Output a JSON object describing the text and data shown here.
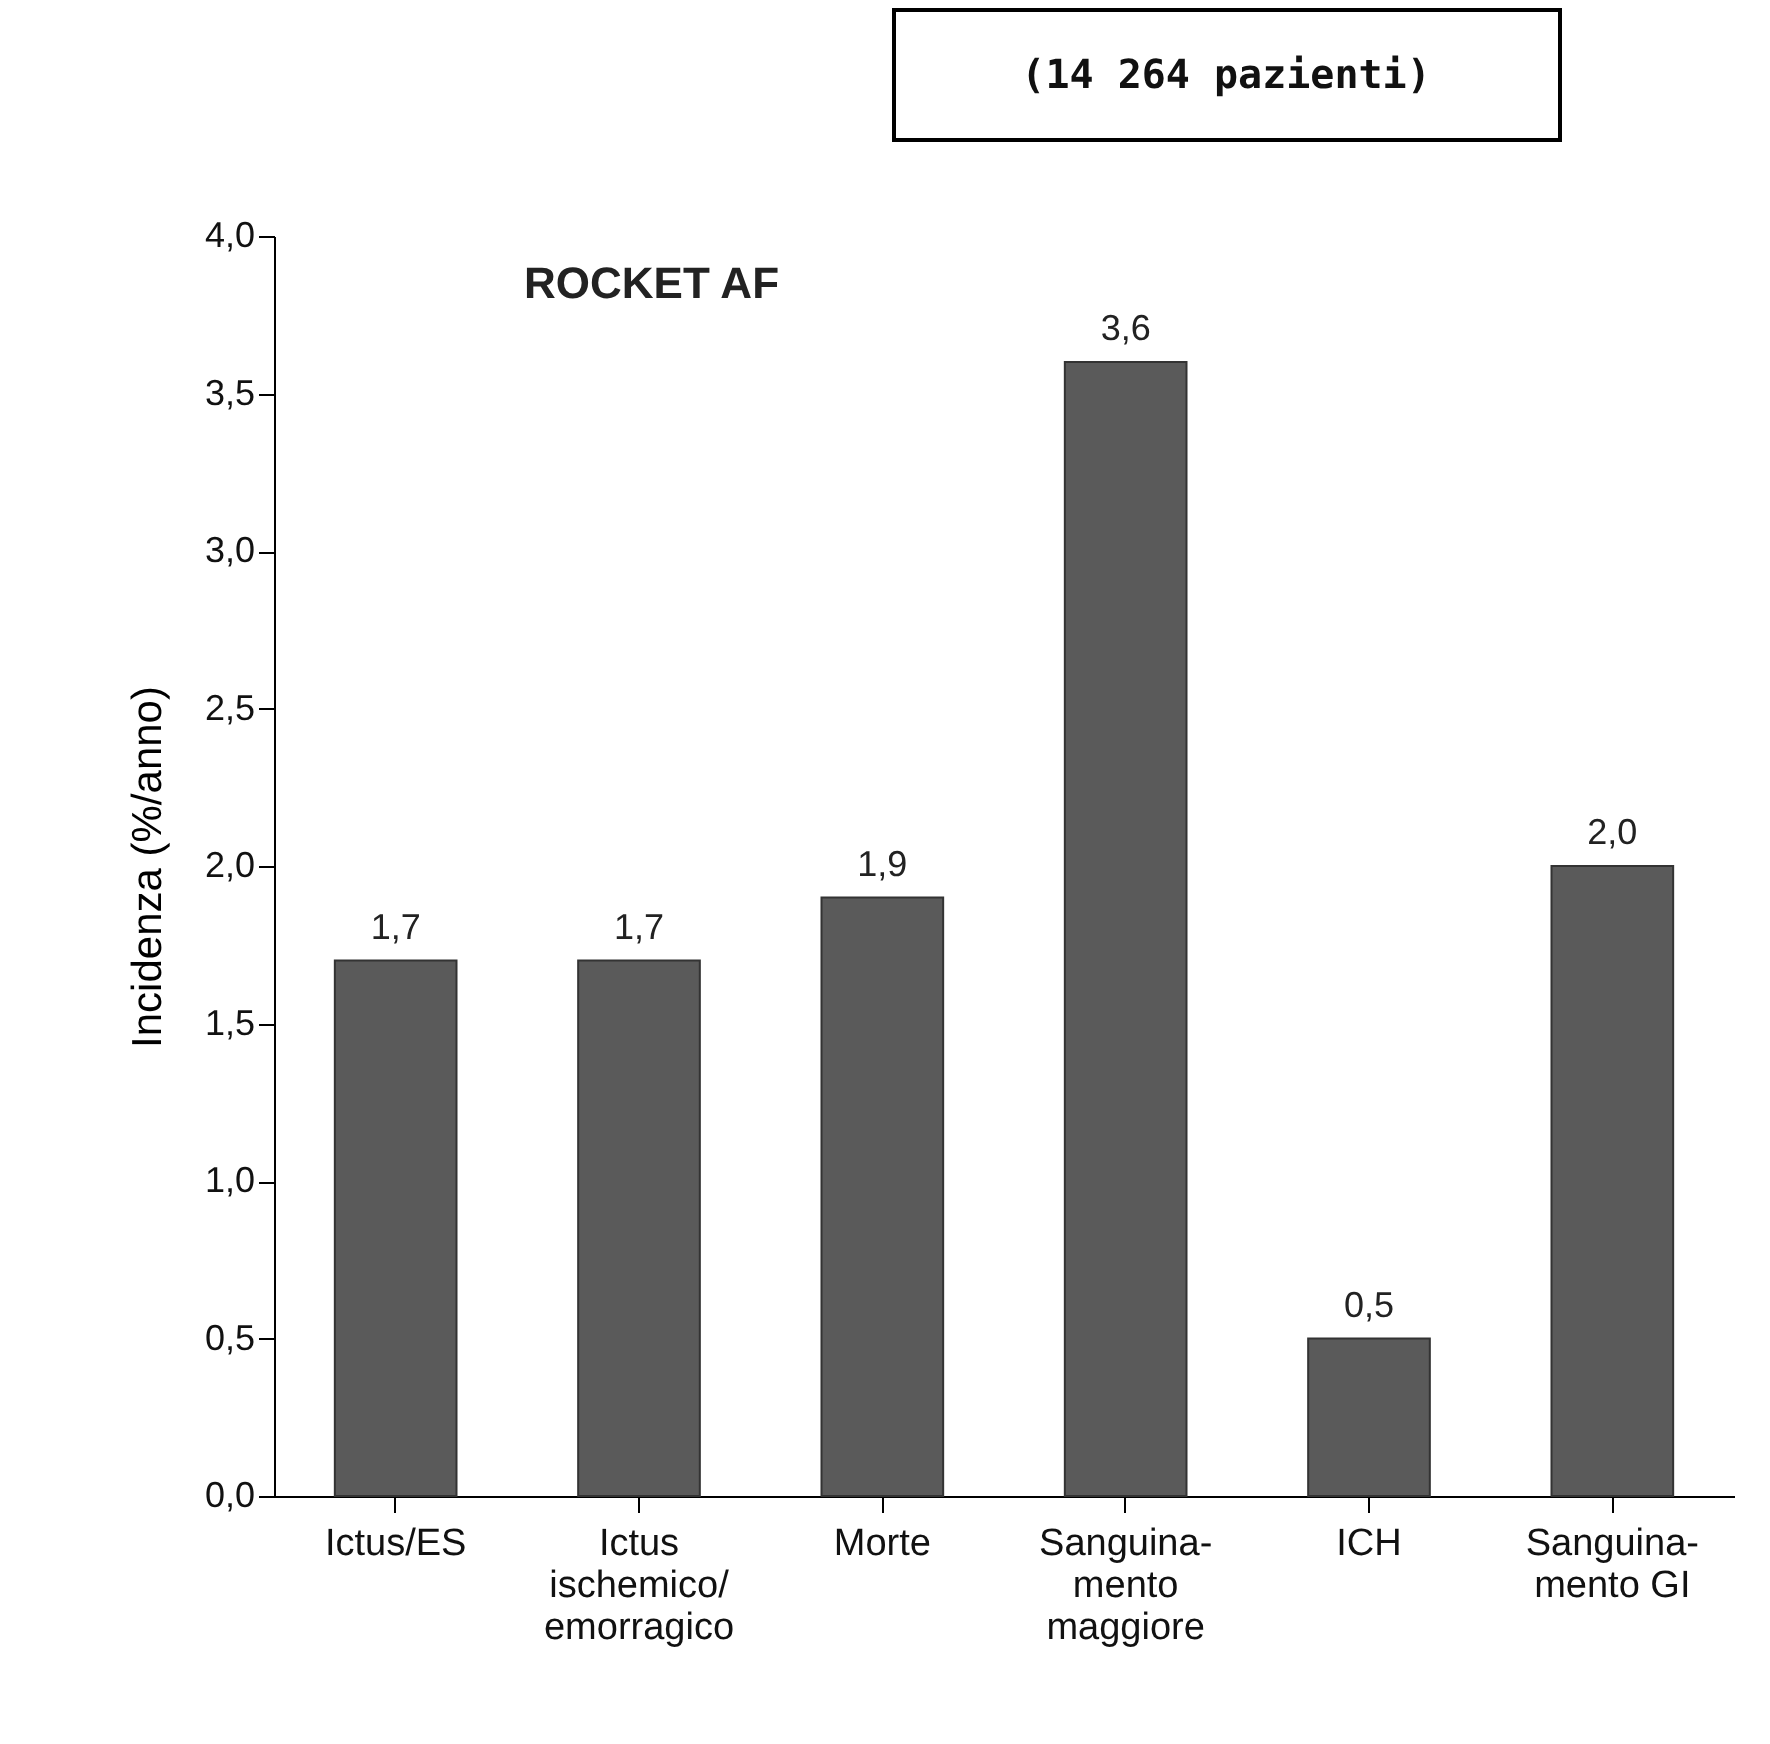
{
  "chart_data": {
    "type": "bar",
    "title": "ROCKET AF",
    "annotations": [
      "(14 264 pazienti)"
    ],
    "ylabel": "Incidenza (%/anno)",
    "categories": [
      "Ictus/ES",
      "Ictus\nischemico/\nemorragico",
      "Morte",
      "Sanguina-\nmento\nmaggiore",
      "ICH",
      "Sanguina-\nmento GI"
    ],
    "values": [
      1.7,
      1.7,
      1.9,
      3.6,
      0.5,
      2.0
    ],
    "value_labels": [
      "1,7",
      "1,7",
      "1,9",
      "3,6",
      "0,5",
      "2,0"
    ],
    "color": "#5a5a5a",
    "ylim": [
      0,
      4.0
    ],
    "yticks": [
      {
        "value": 0,
        "label": "0,0"
      },
      {
        "value": 0.5,
        "label": "0,5"
      },
      {
        "value": 1.0,
        "label": "1,0"
      },
      {
        "value": 1.5,
        "label": "1,5"
      },
      {
        "value": 2.0,
        "label": "2,0"
      },
      {
        "value": 2.5,
        "label": "2,5"
      },
      {
        "value": 3.0,
        "label": "3,0"
      },
      {
        "value": 3.5,
        "label": "3,5"
      },
      {
        "value": 4.0,
        "label": "4,0"
      }
    ],
    "grid": false
  }
}
